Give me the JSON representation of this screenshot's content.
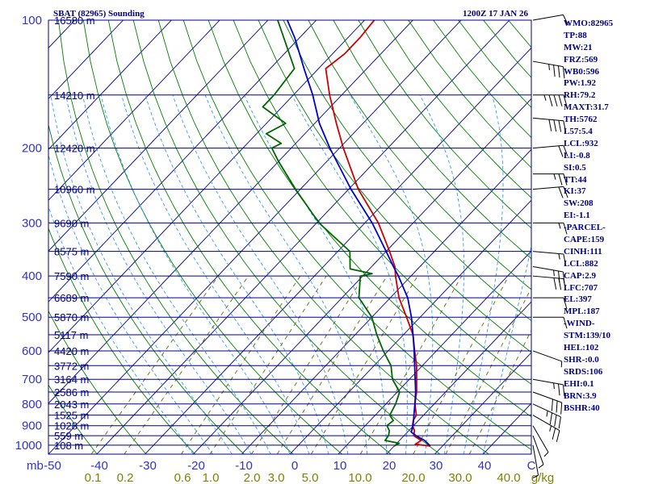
{
  "header": {
    "title": "SBAT (82965) Sounding",
    "valid_time": "1200Z 17 JAN 26"
  },
  "indices": [
    "WMO:82965",
    "TP:88",
    "MW:21",
    "FRZ:569",
    "WB0:596",
    "PW:1.92",
    "RH:79.2",
    "MAXT:31.7",
    "TH:5762",
    "L57:5.4",
    "LCL:932",
    "LI:-0.8",
    "SI:0.5",
    "TT:44",
    "KI:37",
    "SW:208",
    "EI:-1.1",
    "-PARCEL-",
    "CAPE:159",
    "CINH:111",
    "LCL:882",
    "CAP:2.9",
    "LFC:707",
    "EL:397",
    "MPL:187",
    "-WIND-",
    "STM:139/10",
    "HEL:102",
    "SHR-:0.0",
    "SRDS:106",
    "EHI:0.1",
    "BRN:3.9",
    "BSHR:40"
  ],
  "colors": {
    "temperature": "#cc0000",
    "dewpoint": "#006600",
    "parcel": "#0000cc",
    "isobar": "#000080",
    "dry_adiabat": "#008000",
    "moist_adiabat": "#3399ff",
    "mixing_ratio": "#666600"
  },
  "chart_data": {
    "type": "skew-t",
    "title": "SBAT (82965) Sounding",
    "xlabel": "°C",
    "ylabel": "mb",
    "xlim": [
      -50,
      50
    ],
    "pressure_axis_label": "mb",
    "pressure_ticks": [
      100,
      200,
      300,
      400,
      500,
      600,
      700,
      800,
      900,
      1000
    ],
    "temperature_ticks": [
      "-50",
      "-40",
      "-30",
      "-20",
      "-10",
      "0",
      "10",
      "20",
      "30",
      "40",
      "C"
    ],
    "mixing_ratio_ticks": [
      "0.1",
      "0.2",
      "0.6",
      "1.0",
      "2.0",
      "3.0",
      "5.0",
      "10.0",
      "20.0",
      "30.0",
      "40.0",
      "g/kg"
    ],
    "heights": [
      {
        "p": 100,
        "label": "16580 m"
      },
      {
        "p": 150,
        "label": "14210 m"
      },
      {
        "p": 200,
        "label": "12420 m"
      },
      {
        "p": 250,
        "label": "10960 m"
      },
      {
        "p": 300,
        "label": "9690 m"
      },
      {
        "p": 350,
        "label": "8575 m"
      },
      {
        "p": 400,
        "label": "7590 m"
      },
      {
        "p": 450,
        "label": "6689 m"
      },
      {
        "p": 500,
        "label": "5870 m"
      },
      {
        "p": 550,
        "label": "5117 m"
      },
      {
        "p": 600,
        "label": "4420 m"
      },
      {
        "p": 650,
        "label": "3772 m"
      },
      {
        "p": 700,
        "label": "3164 m"
      },
      {
        "p": 750,
        "label": "2586 m"
      },
      {
        "p": 800,
        "label": "2043 m"
      },
      {
        "p": 850,
        "label": "1525 m"
      },
      {
        "p": 900,
        "label": "1028 m"
      },
      {
        "p": 950,
        "label": "559 m"
      },
      {
        "p": 1000,
        "label": "108 m"
      }
    ],
    "series": [
      {
        "name": "Temperature",
        "points": [
          [
            1005,
            27.5
          ],
          [
            995,
            24.0
          ],
          [
            975,
            24.5
          ],
          [
            950,
            22.0
          ],
          [
            925,
            21.2
          ],
          [
            900,
            19.8
          ],
          [
            875,
            18.9
          ],
          [
            850,
            18.5
          ],
          [
            800,
            16.0
          ],
          [
            750,
            14.0
          ],
          [
            700,
            11.5
          ],
          [
            650,
            8.8
          ],
          [
            600,
            5.5
          ],
          [
            550,
            2.0
          ],
          [
            500,
            -2.8
          ],
          [
            450,
            -8.2
          ],
          [
            400,
            -13.2
          ],
          [
            380,
            -15.2
          ],
          [
            350,
            -19.3
          ],
          [
            300,
            -27.2
          ],
          [
            250,
            -38.0
          ],
          [
            200,
            -49.2
          ],
          [
            175,
            -55.5
          ],
          [
            150,
            -62.5
          ],
          [
            130,
            -68.5
          ],
          [
            120,
            -67.5
          ],
          [
            110,
            -67.5
          ],
          [
            100,
            -68.0
          ]
        ]
      },
      {
        "name": "Dewpoint",
        "points": [
          [
            1005,
            20.0
          ],
          [
            990,
            20.5
          ],
          [
            975,
            17.0
          ],
          [
            950,
            16.8
          ],
          [
            925,
            16.0
          ],
          [
            900,
            14.5
          ],
          [
            875,
            14.8
          ],
          [
            850,
            13.0
          ],
          [
            800,
            12.0
          ],
          [
            750,
            10.5
          ],
          [
            700,
            6.5
          ],
          [
            650,
            3.5
          ],
          [
            600,
            -1.0
          ],
          [
            550,
            -5.5
          ],
          [
            500,
            -10.0
          ],
          [
            450,
            -16.5
          ],
          [
            400,
            -20.5
          ],
          [
            395,
            -18.5
          ],
          [
            385,
            -24.0
          ],
          [
            350,
            -27.5
          ],
          [
            300,
            -39.5
          ],
          [
            250,
            -51.0
          ],
          [
            215,
            -60.0
          ],
          [
            200,
            -64.0
          ],
          [
            195,
            -63.0
          ],
          [
            185,
            -68.0
          ],
          [
            175,
            -66.0
          ],
          [
            160,
            -74.0
          ],
          [
            150,
            -74.0
          ],
          [
            130,
            -75.0
          ],
          [
            100,
            -88.0
          ]
        ]
      },
      {
        "name": "Parcel",
        "points": [
          [
            1005,
            27.5
          ],
          [
            975,
            25.2
          ],
          [
            950,
            22.5
          ],
          [
            932,
            20.8
          ],
          [
            900,
            19.9
          ],
          [
            850,
            18.0
          ],
          [
            800,
            16.0
          ],
          [
            750,
            13.8
          ],
          [
            700,
            11.2
          ],
          [
            650,
            8.4
          ],
          [
            600,
            5.4
          ],
          [
            550,
            2.0
          ],
          [
            500,
            -1.8
          ],
          [
            450,
            -6.4
          ],
          [
            400,
            -12.6
          ],
          [
            380,
            -15.5
          ],
          [
            350,
            -20.0
          ],
          [
            300,
            -28.5
          ],
          [
            250,
            -39.5
          ],
          [
            200,
            -52.0
          ],
          [
            175,
            -59.0
          ],
          [
            150,
            -66.0
          ],
          [
            130,
            -73.0
          ],
          [
            110,
            -81.0
          ],
          [
            100,
            -86.0
          ]
        ]
      }
    ],
    "wind_barbs": [
      {
        "p": 100,
        "dir": 80,
        "kt": 10
      },
      {
        "p": 125,
        "dir": 100,
        "kt": 35
      },
      {
        "p": 150,
        "dir": 90,
        "kt": 45
      },
      {
        "p": 170,
        "dir": 95,
        "kt": 40
      },
      {
        "p": 200,
        "dir": 85,
        "kt": 20
      },
      {
        "p": 230,
        "dir": 90,
        "kt": 25
      },
      {
        "p": 250,
        "dir": 85,
        "kt": 20
      },
      {
        "p": 300,
        "dir": 90,
        "kt": 15
      },
      {
        "p": 350,
        "dir": 95,
        "kt": 15
      },
      {
        "p": 380,
        "dir": 100,
        "kt": 25
      },
      {
        "p": 400,
        "dir": 95,
        "kt": 30
      },
      {
        "p": 450,
        "dir": 90,
        "kt": 10
      },
      {
        "p": 500,
        "dir": 90,
        "kt": 10
      },
      {
        "p": 600,
        "dir": 110,
        "kt": 5
      },
      {
        "p": 700,
        "dir": 100,
        "kt": 25
      },
      {
        "p": 750,
        "dir": 110,
        "kt": 30
      },
      {
        "p": 800,
        "dir": 115,
        "kt": 35
      },
      {
        "p": 850,
        "dir": 120,
        "kt": 25
      },
      {
        "p": 900,
        "dir": 150,
        "kt": 5
      },
      {
        "p": 950,
        "dir": 160,
        "kt": 5
      },
      {
        "p": 1000,
        "dir": 170,
        "kt": 5
      }
    ]
  }
}
